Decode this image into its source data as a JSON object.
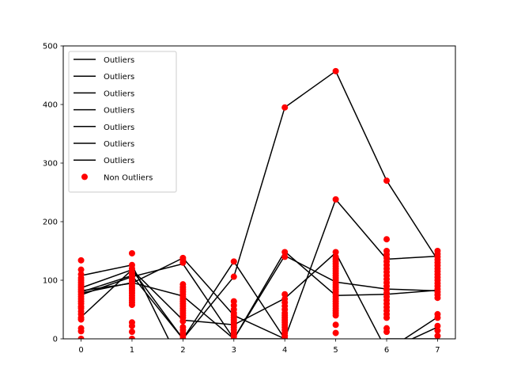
{
  "chart_data": {
    "type": "scatter",
    "xlim": [
      -0.35,
      7.35
    ],
    "ylim": [
      0,
      500
    ],
    "x_ticks": [
      "0",
      "1",
      "2",
      "3",
      "4",
      "5",
      "6",
      "7"
    ],
    "y_ticks": [
      "0",
      "100",
      "200",
      "300",
      "400",
      "500"
    ],
    "grid": false,
    "legend_placement": "top-left",
    "colors": {
      "lines": "#000000",
      "points": "#ff0000"
    },
    "series": [
      {
        "name": "Outliers",
        "type": "line",
        "values": [
          108,
          126,
          -50,
          0,
          142,
          97,
          85,
          82
        ]
      },
      {
        "name": "Outliers",
        "type": "line",
        "values": [
          78,
          96,
          73,
          0,
          149,
          74,
          76,
          83
        ]
      },
      {
        "name": "Outliers",
        "type": "line",
        "values": [
          87,
          118,
          0,
          132,
          0,
          -20,
          -20,
          37
        ]
      },
      {
        "name": "Outliers",
        "type": "line",
        "values": [
          37,
          118,
          32,
          24,
          69,
          147,
          -20,
          20
        ]
      },
      {
        "name": "Outliers",
        "type": "line",
        "values": [
          75,
          106,
          128,
          0,
          0,
          238,
          136,
          141
        ]
      },
      {
        "name": "Outliers",
        "type": "line",
        "values": [
          82,
          95,
          138,
          40,
          0,
          -30,
          0,
          0
        ]
      },
      {
        "name": "Outliers",
        "type": "line",
        "values": [
          80,
          108,
          0,
          106,
          395,
          457,
          270,
          135
        ]
      },
      {
        "name": "Non Outliers",
        "type": "scatter",
        "points": [
          [
            0,
            134
          ],
          [
            0,
            118
          ],
          [
            0,
            110
          ],
          [
            0,
            104
          ],
          [
            0,
            100
          ],
          [
            0,
            96
          ],
          [
            0,
            92
          ],
          [
            0,
            88
          ],
          [
            0,
            84
          ],
          [
            0,
            80
          ],
          [
            0,
            76
          ],
          [
            0,
            72
          ],
          [
            0,
            68
          ],
          [
            0,
            64
          ],
          [
            0,
            60
          ],
          [
            0,
            55
          ],
          [
            0,
            52
          ],
          [
            0,
            47
          ],
          [
            0,
            42
          ],
          [
            0,
            36
          ],
          [
            0,
            33
          ],
          [
            0,
            18
          ],
          [
            0,
            13
          ],
          [
            0,
            0
          ],
          [
            1,
            146
          ],
          [
            1,
            126
          ],
          [
            1,
            120
          ],
          [
            1,
            114
          ],
          [
            1,
            110
          ],
          [
            1,
            106
          ],
          [
            1,
            102
          ],
          [
            1,
            98
          ],
          [
            1,
            94
          ],
          [
            1,
            90
          ],
          [
            1,
            86
          ],
          [
            1,
            82
          ],
          [
            1,
            78
          ],
          [
            1,
            74
          ],
          [
            1,
            70
          ],
          [
            1,
            66
          ],
          [
            1,
            62
          ],
          [
            1,
            58
          ],
          [
            1,
            28
          ],
          [
            1,
            22
          ],
          [
            1,
            12
          ],
          [
            1,
            0
          ],
          [
            2,
            138
          ],
          [
            2,
            135
          ],
          [
            2,
            130
          ],
          [
            2,
            93
          ],
          [
            2,
            88
          ],
          [
            2,
            84
          ],
          [
            2,
            80
          ],
          [
            2,
            76
          ],
          [
            2,
            72
          ],
          [
            2,
            68
          ],
          [
            2,
            64
          ],
          [
            2,
            60
          ],
          [
            2,
            56
          ],
          [
            2,
            52
          ],
          [
            2,
            48
          ],
          [
            2,
            44
          ],
          [
            2,
            40
          ],
          [
            2,
            36
          ],
          [
            2,
            30
          ],
          [
            2,
            20
          ],
          [
            2,
            15
          ],
          [
            2,
            10
          ],
          [
            2,
            5
          ],
          [
            2,
            0
          ],
          [
            3,
            132
          ],
          [
            3,
            106
          ],
          [
            3,
            64
          ],
          [
            3,
            57
          ],
          [
            3,
            50
          ],
          [
            3,
            44
          ],
          [
            3,
            40
          ],
          [
            3,
            36
          ],
          [
            3,
            32
          ],
          [
            3,
            28
          ],
          [
            3,
            24
          ],
          [
            3,
            20
          ],
          [
            3,
            15
          ],
          [
            3,
            10
          ],
          [
            3,
            5
          ],
          [
            3,
            0
          ],
          [
            4,
            395
          ],
          [
            4,
            148
          ],
          [
            4,
            140
          ],
          [
            4,
            76
          ],
          [
            4,
            68
          ],
          [
            4,
            62
          ],
          [
            4,
            56
          ],
          [
            4,
            50
          ],
          [
            4,
            44
          ],
          [
            4,
            40
          ],
          [
            4,
            36
          ],
          [
            4,
            32
          ],
          [
            4,
            28
          ],
          [
            4,
            24
          ],
          [
            4,
            20
          ],
          [
            4,
            15
          ],
          [
            4,
            10
          ],
          [
            4,
            5
          ],
          [
            4,
            0
          ],
          [
            5,
            457
          ],
          [
            5,
            238
          ],
          [
            5,
            148
          ],
          [
            5,
            140
          ],
          [
            5,
            136
          ],
          [
            5,
            132
          ],
          [
            5,
            128
          ],
          [
            5,
            124
          ],
          [
            5,
            120
          ],
          [
            5,
            116
          ],
          [
            5,
            112
          ],
          [
            5,
            108
          ],
          [
            5,
            104
          ],
          [
            5,
            100
          ],
          [
            5,
            96
          ],
          [
            5,
            92
          ],
          [
            5,
            88
          ],
          [
            5,
            84
          ],
          [
            5,
            80
          ],
          [
            5,
            76
          ],
          [
            5,
            72
          ],
          [
            5,
            68
          ],
          [
            5,
            64
          ],
          [
            5,
            60
          ],
          [
            5,
            56
          ],
          [
            5,
            52
          ],
          [
            5,
            48
          ],
          [
            5,
            44
          ],
          [
            5,
            40
          ],
          [
            5,
            24
          ],
          [
            5,
            10
          ],
          [
            6,
            270
          ],
          [
            6,
            170
          ],
          [
            6,
            150
          ],
          [
            6,
            144
          ],
          [
            6,
            138
          ],
          [
            6,
            132
          ],
          [
            6,
            126
          ],
          [
            6,
            120
          ],
          [
            6,
            114
          ],
          [
            6,
            108
          ],
          [
            6,
            102
          ],
          [
            6,
            96
          ],
          [
            6,
            90
          ],
          [
            6,
            84
          ],
          [
            6,
            78
          ],
          [
            6,
            72
          ],
          [
            6,
            66
          ],
          [
            6,
            60
          ],
          [
            6,
            54
          ],
          [
            6,
            48
          ],
          [
            6,
            42
          ],
          [
            6,
            36
          ],
          [
            6,
            18
          ],
          [
            6,
            12
          ],
          [
            7,
            150
          ],
          [
            7,
            145
          ],
          [
            7,
            140
          ],
          [
            7,
            135
          ],
          [
            7,
            130
          ],
          [
            7,
            125
          ],
          [
            7,
            120
          ],
          [
            7,
            115
          ],
          [
            7,
            110
          ],
          [
            7,
            105
          ],
          [
            7,
            100
          ],
          [
            7,
            95
          ],
          [
            7,
            90
          ],
          [
            7,
            85
          ],
          [
            7,
            80
          ],
          [
            7,
            75
          ],
          [
            7,
            70
          ],
          [
            7,
            42
          ],
          [
            7,
            36
          ],
          [
            7,
            22
          ],
          [
            7,
            14
          ],
          [
            7,
            5
          ]
        ]
      }
    ]
  }
}
